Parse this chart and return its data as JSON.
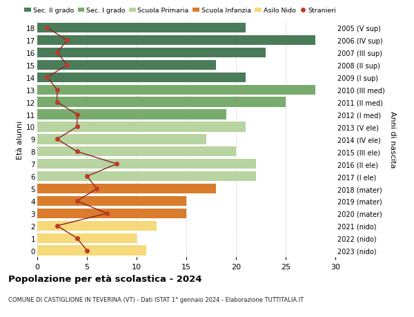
{
  "ages": [
    0,
    1,
    2,
    3,
    4,
    5,
    6,
    7,
    8,
    9,
    10,
    11,
    12,
    13,
    14,
    15,
    16,
    17,
    18
  ],
  "right_labels": [
    "2023 (nido)",
    "2022 (nido)",
    "2021 (nido)",
    "2020 (mater)",
    "2019 (mater)",
    "2018 (mater)",
    "2017 (I ele)",
    "2016 (II ele)",
    "2015 (III ele)",
    "2014 (IV ele)",
    "2013 (V ele)",
    "2012 (I med)",
    "2011 (II med)",
    "2010 (III med)",
    "2009 (I sup)",
    "2008 (II sup)",
    "2007 (III sup)",
    "2006 (IV sup)",
    "2005 (V sup)"
  ],
  "bar_values": [
    11,
    10,
    12,
    15,
    15,
    18,
    22,
    22,
    20,
    17,
    21,
    19,
    25,
    28,
    21,
    18,
    23,
    28,
    21
  ],
  "stranieri_values": [
    5,
    4,
    2,
    7,
    4,
    6,
    5,
    8,
    4,
    2,
    4,
    4,
    2,
    2,
    1,
    3,
    2,
    3,
    1
  ],
  "bar_colors": [
    "#f5d97a",
    "#f5d97a",
    "#f5d97a",
    "#d97c2b",
    "#d97c2b",
    "#d97c2b",
    "#b8d4a0",
    "#b8d4a0",
    "#b8d4a0",
    "#b8d4a0",
    "#b8d4a0",
    "#7aab6e",
    "#7aab6e",
    "#7aab6e",
    "#4a7c59",
    "#4a7c59",
    "#4a7c59",
    "#4a7c59",
    "#4a7c59"
  ],
  "legend_labels": [
    "Sec. II grado",
    "Sec. I grado",
    "Scuola Primaria",
    "Scuola Infanzia",
    "Asilo Nido",
    "Stranieri"
  ],
  "legend_colors": [
    "#4a7c59",
    "#7aab6e",
    "#b8d4a0",
    "#d97c2b",
    "#f5d97a",
    "#c0392b"
  ],
  "stranieri_color": "#c0392b",
  "stranieri_line_color": "#8b2020",
  "title": "Popolazione per età scolastica - 2024",
  "subtitle": "COMUNE DI CASTIGLIONE IN TEVERINA (VT) - Dati ISTAT 1° gennaio 2024 - Elaborazione TUTTITALIA.IT",
  "ylabel_left": "Età alunni",
  "ylabel_right": "Anni di nascita",
  "xlim": [
    0,
    30
  ],
  "bg_color": "#ffffff",
  "grid_color": "#cccccc"
}
